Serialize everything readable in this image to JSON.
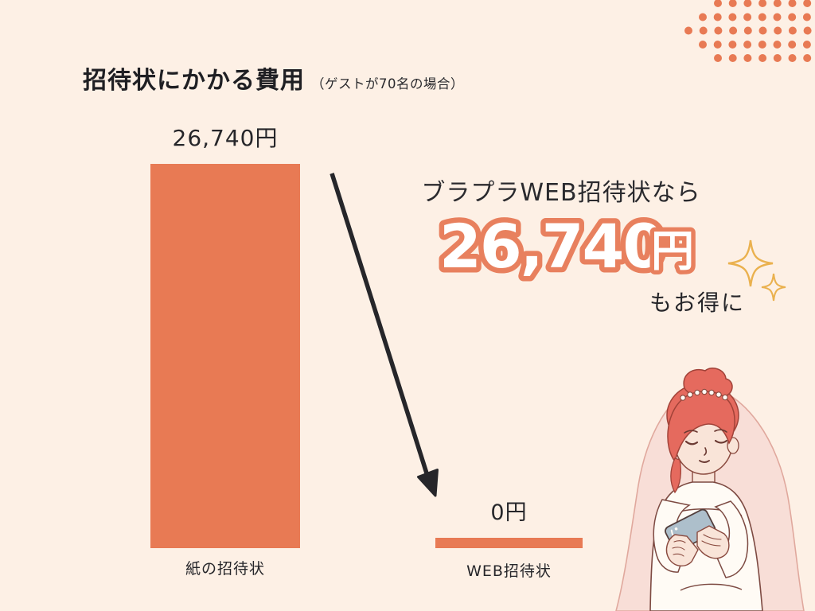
{
  "page": {
    "title": "招待状にかかる費用",
    "subtitle": "（ゲストが70名の場合）"
  },
  "chart_data": {
    "type": "bar",
    "title": "招待状にかかる費用（ゲストが70名の場合）",
    "categories": [
      "紙の招待状",
      "WEB招待状"
    ],
    "values": [
      26740,
      0
    ],
    "value_labels": [
      "26,740円",
      "0円"
    ],
    "unit": "円",
    "ylim": [
      0,
      26740
    ],
    "grid": false,
    "legend": "none",
    "bar_color": "#e87a54"
  },
  "callout": {
    "prefix": "ブラプラWEB招待状なら",
    "amount": "26,740",
    "amount_unit": "円",
    "suffix": "もお得に"
  },
  "colors": {
    "background": "#fdf0e5",
    "accent": "#e87a54",
    "amount_outline": "#e8805e",
    "text_dark": "#26262a",
    "sparkle": "#eab14e"
  },
  "illustration": {
    "name": "bride-with-smartphone"
  }
}
